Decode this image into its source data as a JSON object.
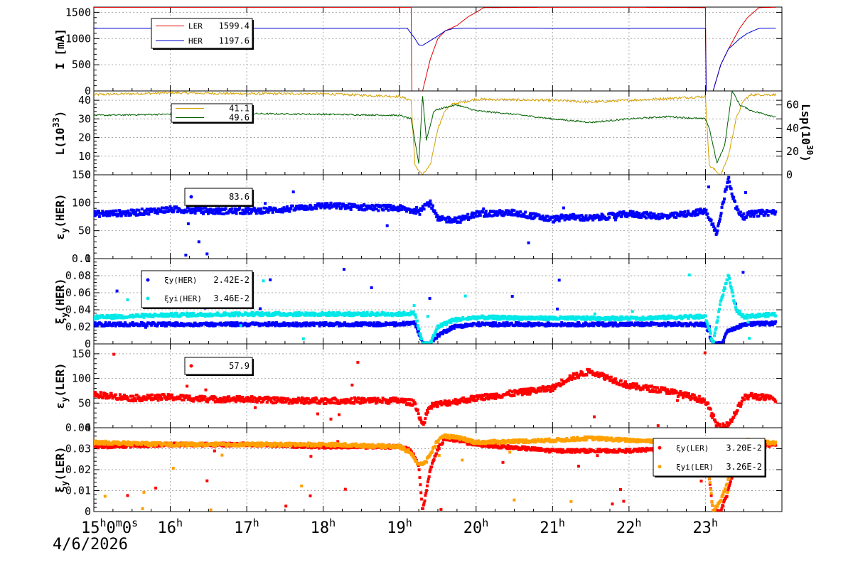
{
  "chart_data": [
    {
      "id": "current",
      "type": "line",
      "ylabel": "I [mA]",
      "ylim": [
        0,
        1600
      ],
      "yticks": [
        0,
        500,
        1000,
        1500
      ],
      "legend": {
        "position": "top-left",
        "entries": [
          {
            "name": "LER",
            "value": "1599.4",
            "color": "#e00000"
          },
          {
            "name": "HER",
            "value": "1197.6",
            "color": "#0000d0"
          }
        ]
      },
      "series": [
        {
          "name": "LER",
          "color": "#e00000",
          "x": [
            15.0,
            19.0,
            19.15,
            19.16,
            19.2,
            19.25,
            19.3,
            19.4,
            19.5,
            19.6,
            19.75,
            19.9,
            20.0,
            20.1,
            21.0,
            22.0,
            23.0,
            23.01,
            23.1,
            23.2,
            23.3,
            23.45,
            23.55,
            23.7,
            23.9
          ],
          "y": [
            1595,
            1595,
            1595,
            0,
            0,
            0,
            0,
            600,
            1000,
            1150,
            1250,
            1420,
            1500,
            1590,
            1595,
            1595,
            1590,
            0,
            0,
            500,
            800,
            1200,
            1400,
            1590,
            1595
          ]
        },
        {
          "name": "HER",
          "color": "#0000d0",
          "x": [
            15.0,
            19.0,
            19.1,
            19.2,
            19.25,
            19.3,
            19.4,
            19.5,
            19.6,
            19.7,
            19.8,
            20.0,
            21.0,
            22.0,
            23.0,
            23.01,
            23.1,
            23.2,
            23.3,
            23.45,
            23.55,
            23.7,
            23.9
          ],
          "y": [
            1195,
            1195,
            1195,
            1000,
            880,
            870,
            960,
            1050,
            1150,
            1190,
            1195,
            1197,
            1195,
            1195,
            1195,
            0,
            0,
            500,
            800,
            1000,
            1100,
            1195,
            1197
          ]
        }
      ]
    },
    {
      "id": "luminosity",
      "type": "line",
      "ylabel": "L(10^33)",
      "ylabel_right": "Lsp(10^30)",
      "ylim": [
        0,
        45
      ],
      "yticks": [
        0,
        10,
        20,
        30,
        40
      ],
      "y2lim": [
        0,
        72
      ],
      "y2ticks": [
        0,
        20,
        40,
        60
      ],
      "legend": {
        "position": "top-left",
        "entries": [
          {
            "name": "",
            "value": "41.1",
            "color": "#d4a000"
          },
          {
            "name": "",
            "value": "49.6",
            "color": "#006000"
          }
        ]
      },
      "series": [
        {
          "name": "",
          "color": "#d4a000",
          "x": [
            15.0,
            16.0,
            17.0,
            18.0,
            19.0,
            19.15,
            19.2,
            19.3,
            19.4,
            19.5,
            19.6,
            19.7,
            20.0,
            21.0,
            21.5,
            22.0,
            22.5,
            23.0,
            23.05,
            23.2,
            23.3,
            23.4,
            23.5,
            23.6,
            23.9
          ],
          "y": [
            43,
            44,
            43.5,
            43.5,
            42,
            40,
            5,
            0,
            5,
            25,
            35,
            38,
            40.5,
            40,
            39,
            40,
            41,
            42,
            5,
            0,
            10,
            30,
            40,
            43,
            43
          ]
        },
        {
          "name": "",
          "color": "#006000",
          "x": [
            15.0,
            16.0,
            17.0,
            18.0,
            19.0,
            19.15,
            19.25,
            19.3,
            19.35,
            19.45,
            19.6,
            19.75,
            20.0,
            20.5,
            21.0,
            21.5,
            22.0,
            22.5,
            23.0,
            23.05,
            23.15,
            23.25,
            23.35,
            23.45,
            23.6,
            23.9
          ],
          "y": [
            51,
            52,
            52.5,
            52,
            51,
            48,
            10,
            68,
            30,
            55,
            58,
            60,
            55,
            52,
            48,
            45,
            48,
            50,
            48,
            40,
            10,
            25,
            72,
            60,
            55,
            50
          ]
        }
      ]
    },
    {
      "id": "emit_her",
      "type": "scatter",
      "ylabel": "εy(HER)",
      "ylim": [
        0,
        150
      ],
      "yticks": [
        0,
        50,
        100,
        150
      ],
      "legend": {
        "position": "top-left",
        "entries": [
          {
            "name": "",
            "value": "83.6",
            "color": "#0000ff"
          }
        ]
      },
      "series": [
        {
          "name": "",
          "color": "#0000ff",
          "x": [
            15.0,
            15.5,
            16.0,
            16.5,
            17.0,
            17.5,
            18.0,
            18.5,
            19.0,
            19.2,
            19.4,
            19.5,
            19.8,
            20.0,
            20.5,
            21.0,
            21.2,
            21.5,
            22.0,
            22.5,
            23.0,
            23.15,
            23.3,
            23.4,
            23.5,
            23.6,
            23.9
          ],
          "y": [
            80,
            82,
            88,
            85,
            85,
            88,
            95,
            92,
            90,
            85,
            100,
            70,
            70,
            80,
            82,
            70,
            75,
            72,
            80,
            75,
            85,
            45,
            145,
            90,
            75,
            80,
            83.6
          ]
        }
      ]
    },
    {
      "id": "xi_her",
      "type": "scatter",
      "ylabel": "ξy(HER)",
      "ylim": [
        0,
        0.1
      ],
      "yticks": [
        0,
        0.02,
        0.04,
        0.06,
        0.08,
        0.1
      ],
      "ytick_labels": [
        "0",
        "0.02",
        "0.04",
        "0.06",
        "0.08",
        "0.1"
      ],
      "legend": {
        "position": "top-left",
        "entries": [
          {
            "name": "ξy(HER)",
            "value": "2.42E-2",
            "color": "#0000ff"
          },
          {
            "name": "ξyi(HER)",
            "value": "3.46E-2",
            "color": "#00e8e8"
          }
        ]
      },
      "series": [
        {
          "name": "ξy(HER)",
          "color": "#0000ff",
          "x": [
            15.0,
            16.0,
            17.0,
            18.0,
            19.0,
            19.2,
            19.3,
            19.4,
            19.5,
            19.7,
            20.0,
            21.0,
            22.0,
            23.0,
            23.1,
            23.2,
            23.3,
            23.5,
            23.9
          ],
          "y": [
            0.023,
            0.023,
            0.023,
            0.023,
            0.023,
            0.025,
            0.0,
            0.0,
            0.01,
            0.02,
            0.023,
            0.023,
            0.023,
            0.023,
            0.0,
            0.0,
            0.015,
            0.023,
            0.0242
          ]
        },
        {
          "name": "ξyi(HER)",
          "color": "#00e8e8",
          "x": [
            15.0,
            16.0,
            17.0,
            18.0,
            19.0,
            19.2,
            19.3,
            19.4,
            19.5,
            19.7,
            20.0,
            21.0,
            22.0,
            23.0,
            23.1,
            23.2,
            23.3,
            23.4,
            23.5,
            23.9
          ],
          "y": [
            0.031,
            0.034,
            0.035,
            0.035,
            0.035,
            0.036,
            0.0,
            0.0,
            0.02,
            0.028,
            0.031,
            0.03,
            0.03,
            0.032,
            0.0,
            0.05,
            0.08,
            0.04,
            0.032,
            0.0346
          ]
        }
      ]
    },
    {
      "id": "emit_ler",
      "type": "scatter",
      "ylabel": "εy(LER)",
      "ylim": [
        0,
        170
      ],
      "yticks": [
        0,
        50,
        100,
        150
      ],
      "legend": {
        "position": "top-left",
        "entries": [
          {
            "name": "",
            "value": "57.9",
            "color": "#ff0000"
          }
        ]
      },
      "series": [
        {
          "name": "",
          "color": "#ff0000",
          "x": [
            15.0,
            15.5,
            16.0,
            16.5,
            17.0,
            17.5,
            18.0,
            18.5,
            19.0,
            19.2,
            19.3,
            19.4,
            19.6,
            20.0,
            20.5,
            21.0,
            21.2,
            21.5,
            22.0,
            22.5,
            23.0,
            23.15,
            23.3,
            23.5,
            23.6,
            23.9
          ],
          "y": [
            68,
            60,
            62,
            58,
            58,
            55,
            55,
            55,
            55,
            50,
            5,
            45,
            50,
            60,
            70,
            80,
            100,
            115,
            85,
            75,
            55,
            5,
            5,
            60,
            65,
            57.9
          ]
        }
      ]
    },
    {
      "id": "xi_ler",
      "type": "scatter",
      "ylabel": "ξy(LER)",
      "ylim": [
        0,
        0.04
      ],
      "yticks": [
        0,
        0.01,
        0.02,
        0.03,
        0.04
      ],
      "ytick_labels": [
        "0",
        "0.01",
        "0.02",
        "0.03",
        "0.04"
      ],
      "legend": {
        "position": "top-right",
        "entries": [
          {
            "name": "ξy(LER)",
            "value": "3.20E-2",
            "color": "#ff0000"
          },
          {
            "name": "ξyi(LER)",
            "value": "3.26E-2",
            "color": "#ffa000"
          }
        ]
      },
      "series": [
        {
          "name": "ξy(LER)",
          "color": "#ff0000",
          "x": [
            15.0,
            16.0,
            17.0,
            18.0,
            19.0,
            19.15,
            19.25,
            19.3,
            19.4,
            19.5,
            19.6,
            20.0,
            21.0,
            22.0,
            23.0,
            23.1,
            23.2,
            23.3,
            23.4,
            23.5,
            23.9
          ],
          "y": [
            0.031,
            0.032,
            0.032,
            0.031,
            0.031,
            0.029,
            0.022,
            0.0,
            0.02,
            0.03,
            0.035,
            0.032,
            0.029,
            0.029,
            0.031,
            0.0,
            0.0,
            0.01,
            0.025,
            0.031,
            0.032
          ]
        },
        {
          "name": "ξyi(LER)",
          "color": "#ffa000",
          "x": [
            15.0,
            16.0,
            17.0,
            18.0,
            19.0,
            19.15,
            19.25,
            19.35,
            19.5,
            19.6,
            19.8,
            20.0,
            21.0,
            21.5,
            22.0,
            23.0,
            23.1,
            23.2,
            23.3,
            23.4,
            23.5,
            23.9
          ],
          "y": [
            0.033,
            0.032,
            0.032,
            0.032,
            0.031,
            0.028,
            0.022,
            0.024,
            0.034,
            0.036,
            0.035,
            0.033,
            0.034,
            0.035,
            0.034,
            0.033,
            0.0,
            0.005,
            0.015,
            0.03,
            0.034,
            0.0326
          ]
        }
      ]
    }
  ],
  "x_axis": {
    "range": [
      15.0,
      24.0
    ],
    "ticks": [
      {
        "x": 15,
        "hour": "15",
        "suffix": "0m0s"
      },
      {
        "x": 16,
        "hour": "16",
        "suffix": ""
      },
      {
        "x": 17,
        "hour": "17",
        "suffix": ""
      },
      {
        "x": 18,
        "hour": "18",
        "suffix": ""
      },
      {
        "x": 19,
        "hour": "19",
        "suffix": ""
      },
      {
        "x": 20,
        "hour": "20",
        "suffix": ""
      },
      {
        "x": 21,
        "hour": "21",
        "suffix": ""
      },
      {
        "x": 22,
        "hour": "22",
        "suffix": ""
      },
      {
        "x": 23,
        "hour": "23",
        "suffix": ""
      }
    ],
    "date": "4/6/2026"
  },
  "grid": true
}
